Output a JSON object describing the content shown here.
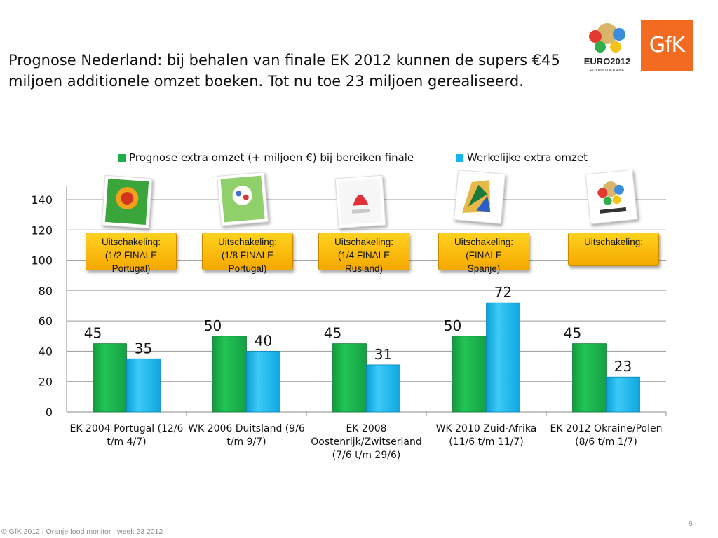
{
  "title": "Prognose Nederland: bij behalen van finale EK 2012 kunnen de supers €45 miljoen additionele omzet boeken. Tot nu toe 23 miljoen gerealiseerd.",
  "logos": {
    "euro_text": "EURO2012",
    "euro_sub": "POLAND-UKRAINE",
    "gfk_text": "GfK"
  },
  "callouts": [
    {
      "line1": "Uitschakeling:",
      "line2": "(1/2 FINALE",
      "line3": "Portugal)"
    },
    {
      "line1": "Uitschakeling:",
      "line2": "(1/8 FINALE",
      "line3": "Portugal)"
    },
    {
      "line1": "Uitschakeling:",
      "line2": "(1/4 FINALE",
      "line3": "Rusland)"
    },
    {
      "line1": "Uitschakeling:",
      "line2": "(FINALE",
      "line3": "Spanje)"
    },
    {
      "line1": "Uitschakeling:",
      "line2": "",
      "line3": ""
    }
  ],
  "thumbnails": [
    "euro2004-logo",
    "wk2006-logo",
    "euro2008-logo",
    "wk2010-logo",
    "euro2012-logo"
  ],
  "footer": "© GfK 2012 | Oranje food monitor | week 23  2012",
  "page_number": "6",
  "colors": {
    "prognose": "#1db04a",
    "werkelijk": "#14b4ee",
    "callout": "#ffc20e",
    "gfk": "#f26b21"
  },
  "chart_data": {
    "type": "bar",
    "categories": [
      [
        "EK 2004 Portugal (12/6",
        "t/m 4/7)"
      ],
      [
        "WK 2006 Duitsland (9/6",
        "t/m 9/7)"
      ],
      [
        "EK 2008",
        "Oostenrijk/Zwitserland",
        "(7/6 t/m 29/6)"
      ],
      [
        "WK 2010 Zuid-Afrika",
        "(11/6 t/m 11/7)"
      ],
      [
        "EK 2012 Okraine/Polen",
        "(8/6 t/m 1/7)"
      ]
    ],
    "series": [
      {
        "name": "Prognose extra omzet (+ miljoen €) bij bereiken finale",
        "values": [
          45,
          50,
          45,
          50,
          45
        ]
      },
      {
        "name": "Werkelijke extra omzet",
        "values": [
          35,
          40,
          31,
          72,
          23
        ]
      }
    ],
    "ylim": [
      0,
      140
    ],
    "yticks": [
      0,
      20,
      40,
      60,
      80,
      100,
      120,
      140
    ],
    "grid": true,
    "legend": "top"
  }
}
